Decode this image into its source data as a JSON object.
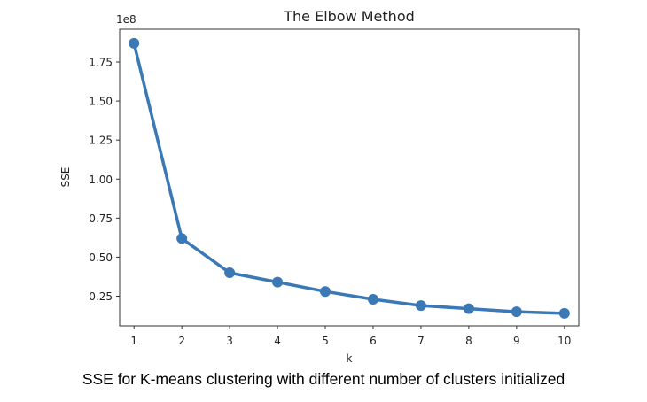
{
  "caption": "SSE for K-means clustering with different number of clusters initialized",
  "chart_data": {
    "type": "line",
    "title": "The Elbow Method",
    "xlabel": "k",
    "ylabel": "SSE",
    "y_offset_text": "1e8",
    "x_ticks": [
      1,
      2,
      3,
      4,
      5,
      6,
      7,
      8,
      9,
      10
    ],
    "y_ticks": [
      "0.25",
      "0.50",
      "0.75",
      "1.00",
      "1.25",
      "1.50",
      "1.75"
    ],
    "y_tick_values": [
      0.25,
      0.5,
      0.75,
      1.0,
      1.25,
      1.5,
      1.75
    ],
    "xlim": [
      0.7,
      10.3
    ],
    "ylim": [
      0.06,
      1.96
    ],
    "grid": false,
    "series": [
      {
        "color": "#3a78b6",
        "markers": true,
        "x": [
          1,
          2,
          3,
          4,
          5,
          6,
          7,
          8,
          9,
          10
        ],
        "values": [
          1.87,
          0.62,
          0.4,
          0.34,
          0.28,
          0.23,
          0.19,
          0.17,
          0.15,
          0.14
        ]
      }
    ]
  }
}
